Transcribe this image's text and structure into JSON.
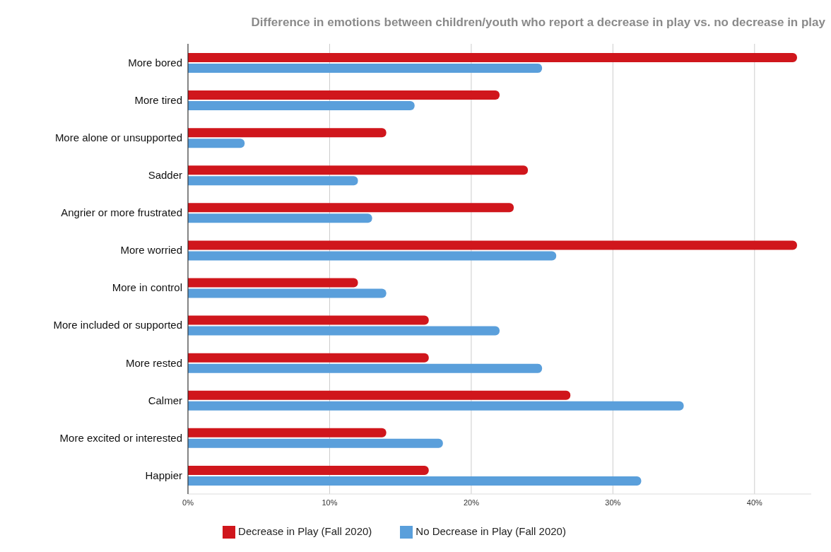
{
  "chart_data": {
    "type": "bar",
    "orientation": "horizontal",
    "title": "Difference in emotions between children/youth who report a decrease in play vs. no decrease in play",
    "categories": [
      "More bored",
      "More tired",
      "More alone or unsupported",
      "Sadder",
      "Angrier or more frustrated",
      "More worried",
      "More in control",
      "More included or supported",
      "More rested",
      "Calmer",
      "More excited or interested",
      "Happier"
    ],
    "series": [
      {
        "name": "Decrease in Play (Fall 2020)",
        "color": "#d0161c",
        "values": [
          43,
          22,
          14,
          24,
          23,
          43,
          12,
          17,
          17,
          27,
          14,
          17
        ]
      },
      {
        "name": "No Decrease in Play (Fall 2020)",
        "color": "#5a9fdb",
        "values": [
          25,
          16,
          4,
          12,
          13,
          26,
          14,
          22,
          25,
          35,
          18,
          32
        ]
      }
    ],
    "xlim": [
      0,
      44
    ],
    "xticks": [
      {
        "value": 0,
        "label": "0%"
      },
      {
        "value": 10,
        "label": "10%"
      },
      {
        "value": 20,
        "label": "20%"
      },
      {
        "value": 30,
        "label": "30%"
      },
      {
        "value": 40,
        "label": "40%"
      }
    ],
    "grid": "x",
    "legend": "bottom"
  }
}
